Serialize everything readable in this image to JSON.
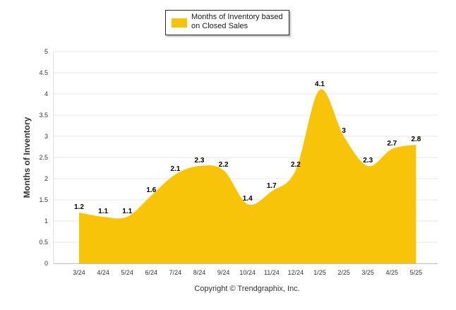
{
  "chart_data": {
    "type": "area",
    "title": "",
    "xlabel": "",
    "ylabel": "Months of Inventory",
    "categories": [
      "3/24",
      "4/24",
      "5/24",
      "6/24",
      "7/24",
      "8/24",
      "9/24",
      "10/24",
      "11/24",
      "12/24",
      "1/25",
      "2/25",
      "3/25",
      "4/25",
      "5/25"
    ],
    "series": [
      {
        "name": "Months of Inventory based on Closed Sales",
        "values": [
          1.2,
          1.1,
          1.1,
          1.6,
          2.1,
          2.3,
          2.2,
          1.4,
          1.7,
          2.2,
          4.1,
          3,
          2.3,
          2.7,
          2.8
        ],
        "labels": [
          "1.2",
          "1.1",
          "1.1",
          "1.6",
          "2.1",
          "2.3",
          "2.2",
          "1.4",
          "1.7",
          "2.2",
          "4.1",
          "3",
          "2.3",
          "2.7",
          "2.8"
        ],
        "color": "#f8c40a"
      }
    ],
    "yticks": [
      "0",
      "0.5",
      "1",
      "1.5",
      "2",
      "2.5",
      "3",
      "3.5",
      "4",
      "4.5",
      "5"
    ],
    "ylim": [
      0,
      5
    ],
    "grid": true,
    "legend_position": "top-center"
  },
  "legend": {
    "label": "Months of Inventory based on Closed Sales"
  },
  "footer": {
    "copyright": "Copyright © Trendgraphix, Inc."
  },
  "colors": {
    "area": "#f8c40a",
    "grid": "#e6e6e6",
    "axis_text": "#333333",
    "label_text": "#000000"
  }
}
